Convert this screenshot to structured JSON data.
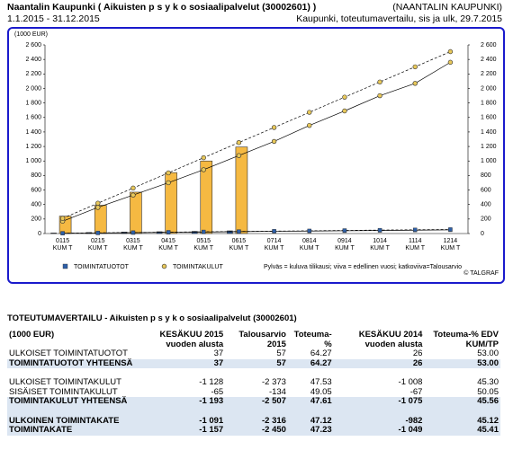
{
  "header": {
    "title": "Naantalin Kaupunki ( Aikuisten  p s y k o sosiaalipalvelut (30002601) )",
    "period": "1.1.2015 - 31.12.2015",
    "org": "(NAANTALIN KAUPUNKI)",
    "report": "Kaupunki, toteutumavertailu, sis ja ulk, 29.7.2015"
  },
  "chart_data": {
    "type": "bar",
    "unit_label": "(1000 EUR)",
    "categories": [
      "0115 KUM T",
      "0215 KUM T",
      "0315 KUM T",
      "0415 KUM T",
      "0515 KUM T",
      "0615 KUM T",
      "0714 KUM T",
      "0814 KUM T",
      "0914 KUM T",
      "1014 KUM T",
      "1114 KUM T",
      "1214 KUM T"
    ],
    "ylim": [
      0,
      2600
    ],
    "yticks": [
      0,
      200,
      400,
      600,
      800,
      {
        "value": 1000,
        "label": "1 000"
      },
      {
        "value": 1200,
        "label": "1 200"
      },
      {
        "value": 1400,
        "label": "1 400"
      },
      {
        "value": 1600,
        "label": "1 600"
      },
      {
        "value": 1800,
        "label": "1 800"
      },
      {
        "value": 2000,
        "label": "2 000"
      },
      {
        "value": 2200,
        "label": "2 200"
      },
      {
        "value": 2400,
        "label": "2 400"
      },
      {
        "value": 2600,
        "label": "2 600"
      }
    ],
    "series": [
      {
        "type": "bar",
        "color": "#f5b942",
        "values": [
          240,
          390,
          570,
          840,
          1000,
          1193,
          null,
          null,
          null,
          null,
          null,
          null
        ]
      },
      {
        "type": "bar",
        "color": "#2d5fa8",
        "values": [
          8,
          14,
          20,
          25,
          30,
          37,
          null,
          null,
          null,
          null,
          null,
          null
        ]
      },
      {
        "type": "line",
        "dash": false,
        "marker": "circle",
        "color": "#e8c85a",
        "values": [
          170,
          360,
          530,
          700,
          880,
          1075,
          1270,
          1490,
          1690,
          1900,
          2070,
          2360
        ]
      },
      {
        "type": "line",
        "dash": true,
        "marker": "circle",
        "color": "#e8c85a",
        "values": [
          209,
          418,
          627,
          836,
          1045,
          1254,
          1462,
          1671,
          1880,
          2089,
          2298,
          2507
        ]
      },
      {
        "type": "line",
        "dash": false,
        "marker": "square",
        "color": "#2d5fa8",
        "values": [
          3,
          7,
          12,
          16,
          20,
          26,
          30,
          34,
          38,
          42,
          46,
          50
        ]
      },
      {
        "type": "line",
        "dash": true,
        "marker": "square",
        "color": "#2d5fa8",
        "values": [
          5,
          10,
          14,
          19,
          24,
          29,
          33,
          38,
          43,
          48,
          52,
          57
        ]
      }
    ],
    "legend": [
      {
        "label": "TOIMINTATUOTOT",
        "color": "#2d5fa8",
        "marker": "square"
      },
      {
        "label": "TOIMINTAKULUT",
        "color": "#e8c85a",
        "marker": "circle"
      }
    ],
    "note": "Pylväs = kuluva tilikausi; viiva = edellinen vuosi; katkoviiva=Talousarvio",
    "credit": "© TALGRAF"
  },
  "table": {
    "title": "TOTEUTUMAVERTAILU - Aikuisten  p s y k o sosiaalipalvelut (30002601)",
    "header": [
      "(1000 EUR)",
      "KESÄKUU 2015 vuoden alusta",
      "Talousarvio 2015",
      "Toteuma-%",
      "KESÄKUU 2014 vuoden alusta",
      "Toteuma-% EDV KUM/TP"
    ],
    "rows": [
      {
        "cells": [
          "ULKOISET TOIMINTATUOTOT",
          "37",
          "57",
          "64.27",
          "26",
          "53.00"
        ]
      },
      {
        "total": true,
        "cells": [
          "TOIMINTATUOTOT YHTEENSÄ",
          "37",
          "57",
          "64.27",
          "26",
          "53.00"
        ]
      },
      {
        "gap_before": true,
        "cells": [
          "ULKOISET TOIMINTAKULUT",
          "-1 128",
          "-2 373",
          "47.53",
          "-1 008",
          "45.30"
        ]
      },
      {
        "cells": [
          "SISÄISET TOIMINTAKULUT",
          "-65",
          "-134",
          "49.05",
          "-67",
          "50.05"
        ]
      },
      {
        "total": true,
        "cells": [
          "TOIMINTAKULUT YHTEENSÄ",
          "-1 193",
          "-2 507",
          "47.61",
          "-1 075",
          "45.56"
        ]
      },
      {
        "gap_before": true,
        "total": true,
        "cells": [
          "ULKOINEN TOIMINTAKATE",
          "-1 091",
          "-2 316",
          "47.12",
          "-982",
          "45.12"
        ]
      },
      {
        "total": true,
        "cells": [
          "TOIMINTAKATE",
          "-1 157",
          "-2 450",
          "47.23",
          "-1 049",
          "45.41"
        ]
      }
    ]
  }
}
